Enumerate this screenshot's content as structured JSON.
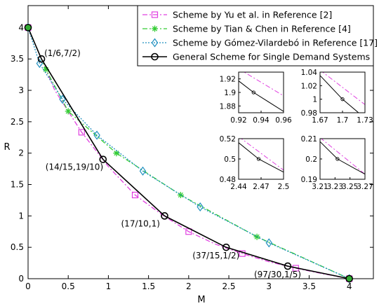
{
  "chart_data": {
    "type": "line",
    "xlabel": "M",
    "ylabel": "R",
    "xlim": [
      0,
      4.3
    ],
    "ylim": [
      0,
      4.35
    ],
    "xticks": [
      "0",
      "0.5",
      "1",
      "1.5",
      "2",
      "2.5",
      "3",
      "3.5",
      "4"
    ],
    "yticks": [
      "0",
      "0.5",
      "1",
      "1.5",
      "2",
      "2.5",
      "3",
      "3.5",
      "4"
    ],
    "grid": false,
    "legend_position": "top-right",
    "series": [
      {
        "name": "Scheme by Yu et al. in Reference [2]",
        "color": "#e040e0",
        "dash": "dashdot",
        "marker": "square",
        "x": [
          0,
          0.667,
          1.333,
          2.0,
          2.667,
          3.333,
          4.0
        ],
        "y": [
          4.0,
          2.333,
          1.333,
          0.75,
          0.4,
          0.167,
          0.0
        ],
        "curve_x": [
          0,
          0.333,
          0.667,
          1.0,
          1.333,
          1.667,
          2.0,
          2.333,
          2.667,
          3.0,
          3.333,
          3.667,
          4.0
        ],
        "curve_y": [
          4.0,
          3.0,
          2.333,
          1.786,
          1.333,
          1.02,
          0.75,
          0.55,
          0.4,
          0.27,
          0.167,
          0.08,
          0.0
        ]
      },
      {
        "name": "Scheme by Tian & Chen in Reference [4]",
        "color": "#33cc33",
        "dash": "dashdot",
        "marker": "asterisk",
        "x": [
          0,
          0.222,
          0.5,
          1.1,
          1.9,
          2.85,
          4.0
        ],
        "y": [
          4.0,
          3.333,
          2.667,
          2.0,
          1.333,
          0.667,
          0.0
        ]
      },
      {
        "name": "Scheme by Gómez-Vilardebó in Reference [17]",
        "color": "#1f8fbf",
        "dash": "dotted",
        "marker": "diamond",
        "x": [
          0,
          0.143,
          0.429,
          0.857,
          1.429,
          2.143,
          3.0,
          4.0
        ],
        "y": [
          4.0,
          3.429,
          2.857,
          2.286,
          1.714,
          1.143,
          0.571,
          0.0
        ]
      },
      {
        "name": "General Scheme for Single Demand Systems",
        "color": "#000000",
        "dash": "solid",
        "marker": "circle",
        "x": [
          0,
          0.1667,
          0.9333,
          1.7,
          2.4667,
          3.2333,
          4.0
        ],
        "y": [
          4.0,
          3.5,
          1.9,
          1.0,
          0.5,
          0.2,
          0.0
        ]
      }
    ],
    "annotations": [
      {
        "text": "(1/6,7/2)",
        "x": 0.1667,
        "y": 3.5
      },
      {
        "text": "(14/15,19/10)",
        "x": 0.9333,
        "y": 1.9
      },
      {
        "text": "(17/10,1)",
        "x": 1.7,
        "y": 1.0
      },
      {
        "text": "(37/15,1/2)",
        "x": 2.4667,
        "y": 0.5
      },
      {
        "text": "(97/30,1/5)",
        "x": 3.2333,
        "y": 0.2
      }
    ],
    "insets": [
      {
        "xlim": [
          0.92,
          0.96
        ],
        "ylim": [
          1.87,
          1.93
        ],
        "xticks": [
          "0.92",
          "0.94",
          "0.96"
        ],
        "yticks": [
          "1.88",
          "1.9",
          "1.92"
        ],
        "point": [
          0.9333,
          1.9
        ],
        "black": [
          [
            0.92,
            1.917
          ],
          [
            0.9333,
            1.9
          ],
          [
            0.96,
            1.872
          ]
        ],
        "pink": [
          [
            0.92,
            1.935
          ],
          [
            0.96,
            1.895
          ]
        ]
      },
      {
        "xlim": [
          1.67,
          1.73
        ],
        "ylim": [
          0.98,
          1.04
        ],
        "xticks": [
          "1.67",
          "1.7",
          "1.73"
        ],
        "yticks": [
          "0.98",
          "1",
          "1.02",
          "1.04"
        ],
        "point": [
          1.7,
          1.0
        ],
        "black": [
          [
            1.67,
            1.035
          ],
          [
            1.7,
            1.0
          ],
          [
            1.73,
            0.972
          ]
        ],
        "pink": [
          [
            1.67,
            1.043
          ],
          [
            1.73,
            0.992
          ]
        ]
      },
      {
        "xlim": [
          2.44,
          2.5
        ],
        "ylim": [
          0.48,
          0.52
        ],
        "xticks": [
          "2.44",
          "2.47",
          "2.5"
        ],
        "yticks": [
          "0.48",
          "0.5",
          "0.52"
        ],
        "point": [
          2.4667,
          0.5
        ],
        "black": [
          [
            2.44,
            0.516
          ],
          [
            2.4667,
            0.5
          ],
          [
            2.5,
            0.487
          ]
        ],
        "pink": [
          [
            2.44,
            0.522
          ],
          [
            2.5,
            0.489
          ]
        ]
      },
      {
        "xlim": [
          3.21,
          3.27
        ],
        "ylim": [
          0.19,
          0.21
        ],
        "xticks": [
          "3.21",
          "3.23",
          "3.25",
          "3.27"
        ],
        "yticks": [
          "0.19",
          "0.2",
          "0.21"
        ],
        "point": [
          3.2333,
          0.2
        ],
        "black": [
          [
            3.21,
            0.2085
          ],
          [
            3.2333,
            0.2
          ],
          [
            3.27,
            0.1925
          ]
        ],
        "pink": [
          [
            3.21,
            0.2105
          ],
          [
            3.27,
            0.1925
          ]
        ]
      }
    ]
  }
}
